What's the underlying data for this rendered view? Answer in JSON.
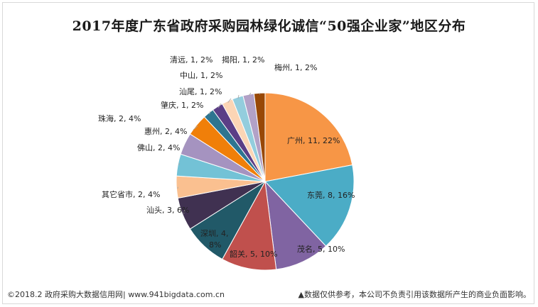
{
  "title": "2017年度广东省政府采购园林绿化诚信“50强企业家”地区分布",
  "footer_left": "©2018.2 政府采购大数据信用网| www.941bigdata.com.cn",
  "footer_right": "▲数据仅供参考，本公司不负责引用该数据所产生的商业负面影响。",
  "chart_data": {
    "type": "pie",
    "title": "2017年度广东省政府采购园林绿化诚信“50强企业家”地区分布",
    "slices": [
      {
        "name": "广州",
        "value": 11,
        "percent": "22%",
        "color": "#F79646",
        "label": "广州, 11, 22%"
      },
      {
        "name": "东莞",
        "value": 8,
        "percent": "16%",
        "color": "#4BACC6",
        "label": "东莞, 8, 16%"
      },
      {
        "name": "茂名",
        "value": 5,
        "percent": "10%",
        "color": "#8064A2",
        "label": "茂名, 5, 10%"
      },
      {
        "name": "韶关",
        "value": 5,
        "percent": "10%",
        "color": "#C0504D",
        "label": "韶关, 5, 10%"
      },
      {
        "name": "深圳",
        "value": 4,
        "percent": "8%",
        "color": "#215968",
        "label": "深圳, 4, 8%"
      },
      {
        "name": "汕头",
        "value": 3,
        "percent": "6%",
        "color": "#403151",
        "label": "汕头, 3, 6%"
      },
      {
        "name": "其它省市",
        "value": 2,
        "percent": "4%",
        "color": "#FAC090",
        "label": "其它省市, 2, 4%"
      },
      {
        "name": "佛山",
        "value": 2,
        "percent": "4%",
        "color": "#73C2D6",
        "label": "佛山, 2, 4%"
      },
      {
        "name": "惠州",
        "value": 2,
        "percent": "4%",
        "color": "#A593C0",
        "label": "惠州, 2, 4%"
      },
      {
        "name": "珠海",
        "value": 2,
        "percent": "4%",
        "color": "#F07F09",
        "label": "珠海, 2, 4%"
      },
      {
        "name": "肇庆",
        "value": 1,
        "percent": "2%",
        "color": "#2E7590",
        "label": "肇庆, 1, 2%"
      },
      {
        "name": "汕尾",
        "value": 1,
        "percent": "2%",
        "color": "#5B3E86",
        "label": "汕尾, 1, 2%"
      },
      {
        "name": "中山",
        "value": 1,
        "percent": "2%",
        "color": "#FCD5B5",
        "label": "中山, 1, 2%"
      },
      {
        "name": "清远",
        "value": 1,
        "percent": "2%",
        "color": "#93CDDD",
        "label": "清远, 1, 2%"
      },
      {
        "name": "揭阳",
        "value": 1,
        "percent": "2%",
        "color": "#B2A1C7",
        "label": "揭阳, 1, 2%"
      },
      {
        "name": "梅州",
        "value": 1,
        "percent": "2%",
        "color": "#984807",
        "label": "梅州, 1, 2%"
      }
    ],
    "total": 50
  }
}
